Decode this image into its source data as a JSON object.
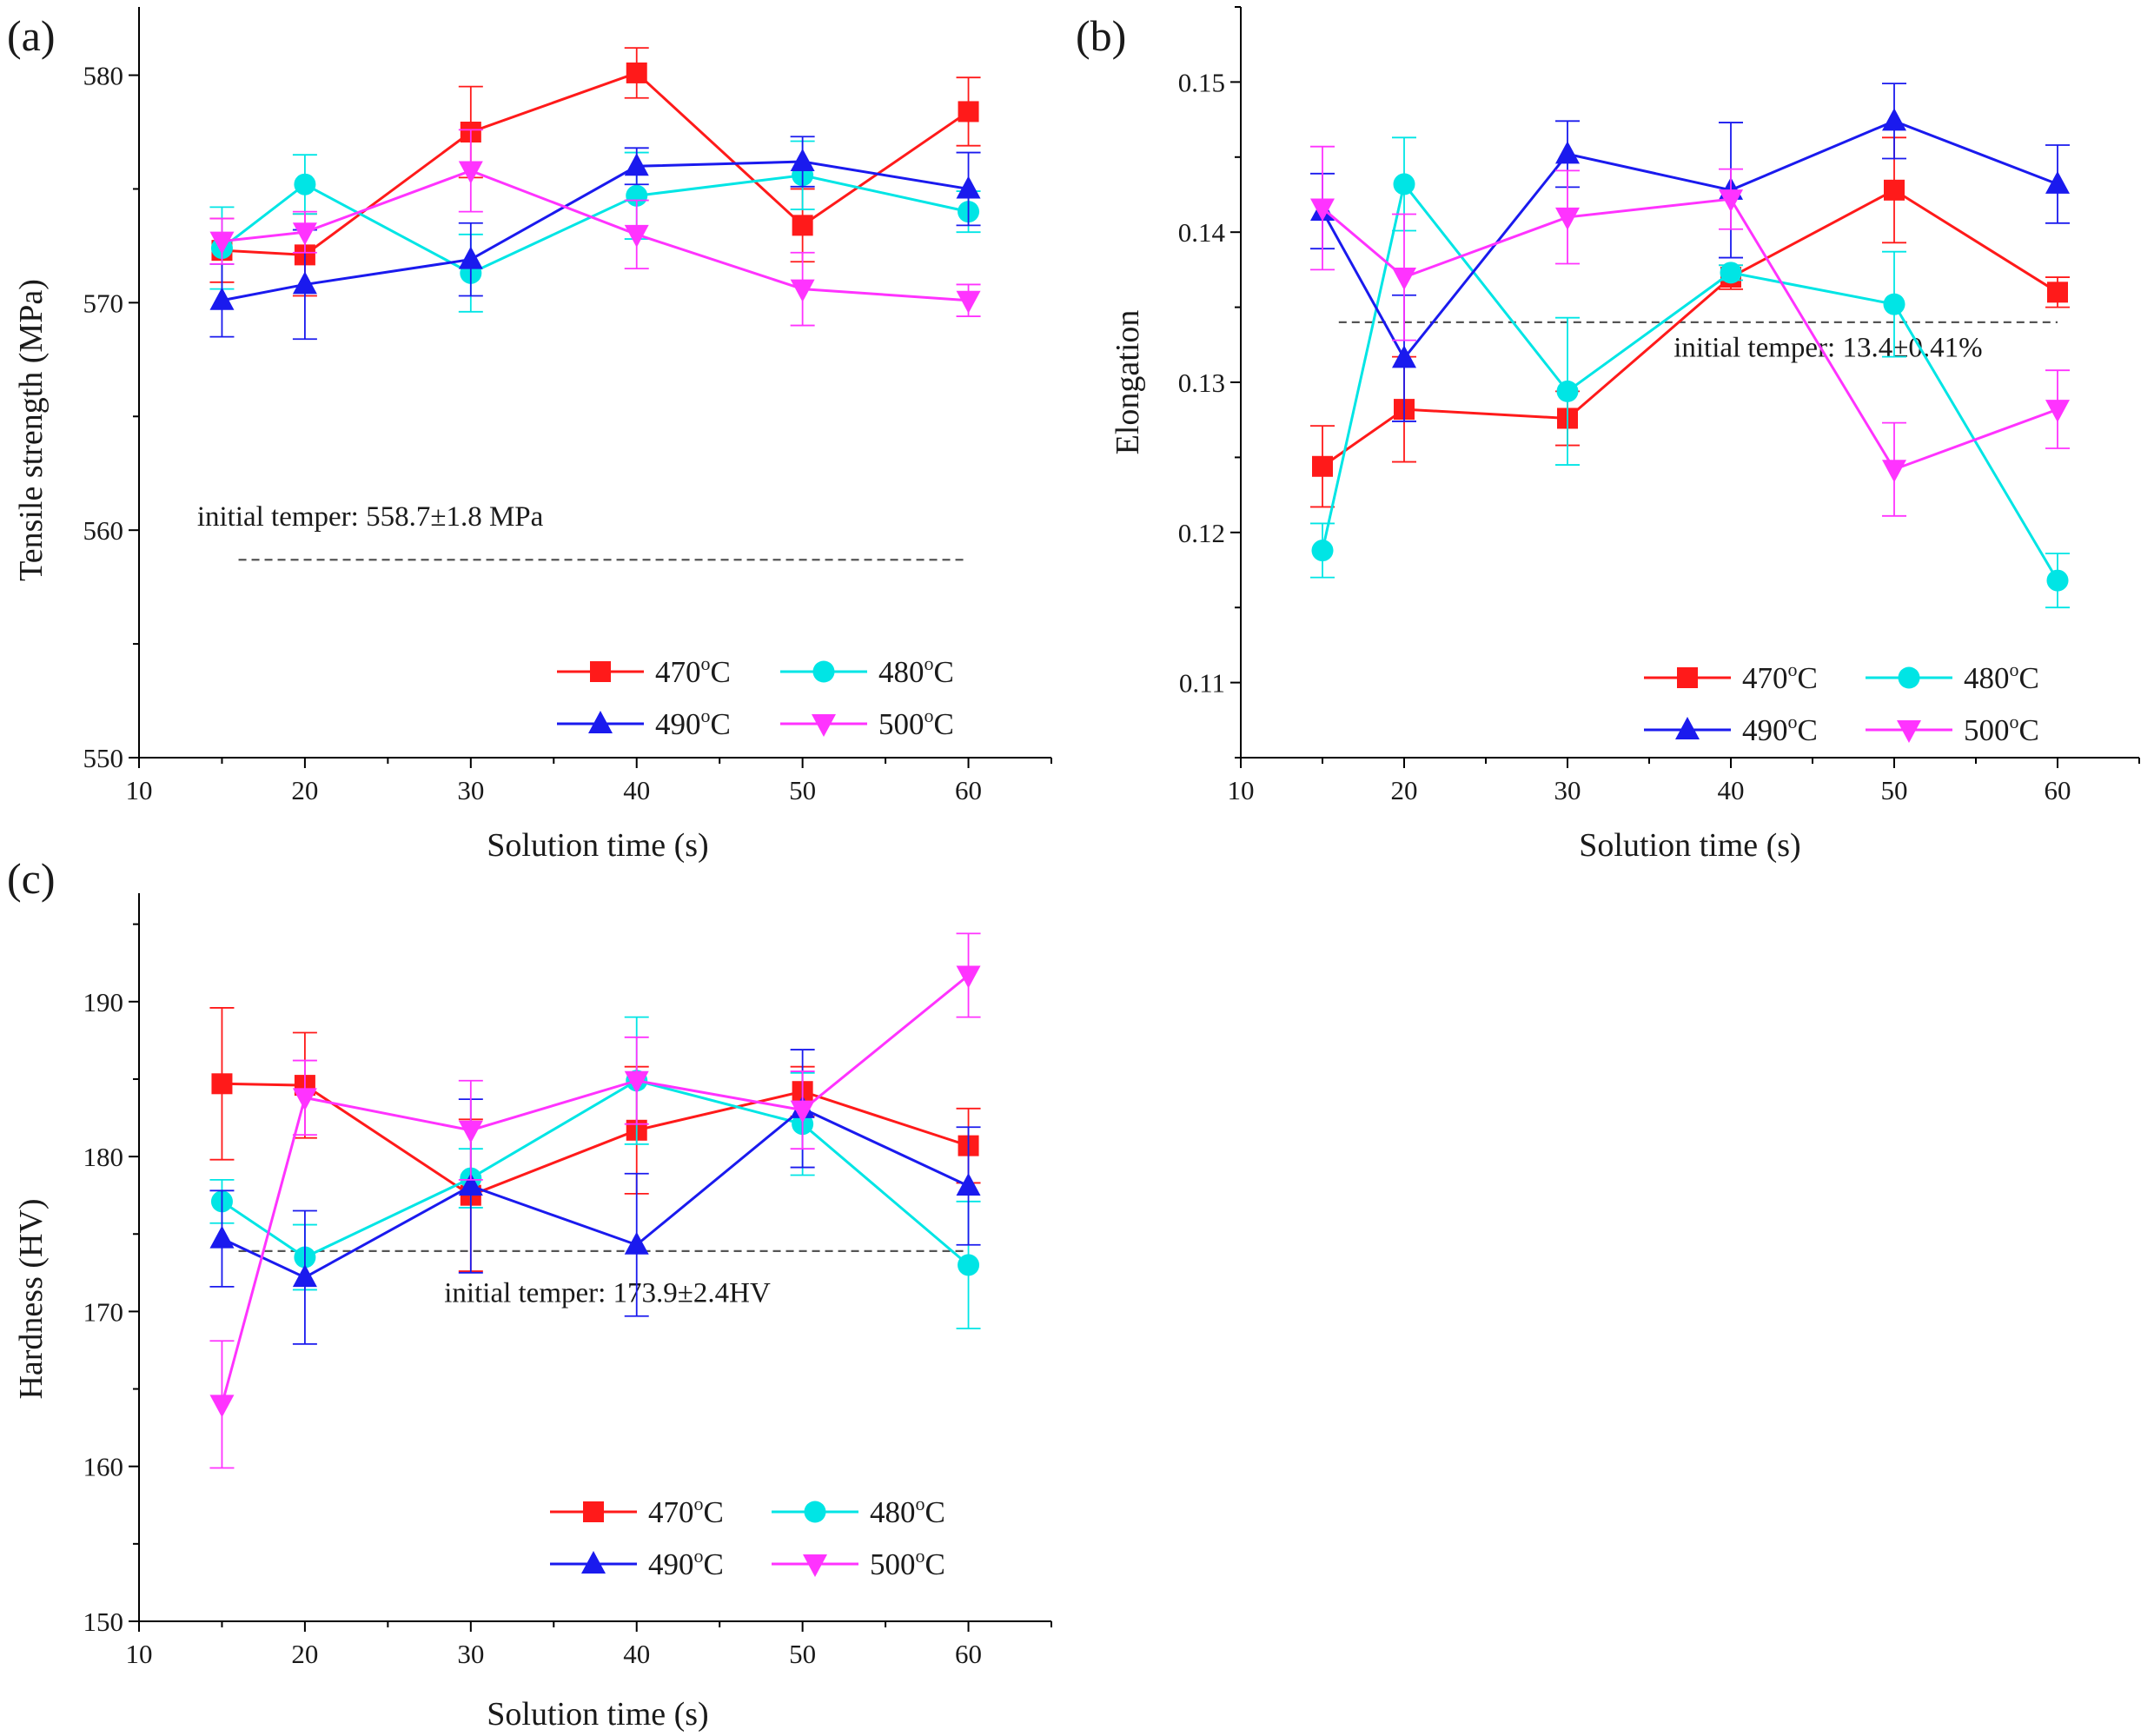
{
  "colors": {
    "s470": "#ff1a1a",
    "s480": "#00e5e5",
    "s490": "#1a1aee",
    "s500": "#ff33ff",
    "axis": "#000000",
    "reference": "#555555"
  },
  "chart_data": [
    {
      "id": "a",
      "panel_label": "(a)",
      "type": "line",
      "title": "",
      "xlabel": "Solution time (s)",
      "ylabel": "Tensile strength (MPa)",
      "xlim": [
        10,
        65
      ],
      "ylim": [
        550,
        583
      ],
      "xticks": [
        10,
        20,
        30,
        40,
        50,
        60
      ],
      "yticks": [
        550,
        560,
        570,
        580
      ],
      "ytick_labels": [
        "550",
        "560",
        "570",
        "580"
      ],
      "x": [
        15,
        20,
        30,
        40,
        50,
        60
      ],
      "series": [
        {
          "name": "470°C",
          "base": "470",
          "marker": "square",
          "color_key": "s470",
          "values": [
            572.3,
            572.1,
            577.5,
            580.1,
            573.4,
            578.4
          ],
          "errors": [
            1.4,
            1.8,
            2.0,
            1.1,
            1.6,
            1.5
          ]
        },
        {
          "name": "480°C",
          "base": "480",
          "marker": "circle",
          "color_key": "s480",
          "values": [
            572.4,
            575.2,
            571.3,
            574.7,
            575.6,
            574.0
          ],
          "errors": [
            1.8,
            1.3,
            1.7,
            1.9,
            1.5,
            0.9
          ]
        },
        {
          "name": "490°C",
          "base": "490",
          "marker": "triangle-up",
          "color_key": "s490",
          "values": [
            570.1,
            570.8,
            571.9,
            576.0,
            576.2,
            575.0
          ],
          "errors": [
            1.6,
            2.4,
            1.6,
            0.8,
            1.1,
            1.6
          ]
        },
        {
          "name": "500°C",
          "base": "500",
          "marker": "triangle-down",
          "color_key": "s500",
          "values": [
            572.7,
            573.1,
            575.8,
            573.0,
            570.6,
            570.1
          ],
          "errors": [
            1.0,
            0.9,
            1.8,
            1.5,
            1.6,
            0.7
          ]
        }
      ],
      "reference_line": {
        "y": 558.7,
        "x_start": 16,
        "x_end": 60
      },
      "annotation": "initial temper: 558.7±1.8 MPa",
      "annotation_anchor": {
        "x": 13.5,
        "y": 560.2
      },
      "legend_position": "lower-right"
    },
    {
      "id": "b",
      "panel_label": "(b)",
      "type": "line",
      "title": "",
      "xlabel": "Solution time (s)",
      "ylabel": "Elongation",
      "xlim": [
        10,
        65
      ],
      "ylim": [
        0.105,
        0.155
      ],
      "xticks": [
        10,
        20,
        30,
        40,
        50,
        60
      ],
      "yticks": [
        0.11,
        0.12,
        0.13,
        0.14,
        0.15
      ],
      "ytick_labels": [
        "0.11",
        "0.12",
        "0.13",
        "0.14",
        "0.15"
      ],
      "x": [
        15,
        20,
        30,
        40,
        50,
        60
      ],
      "series": [
        {
          "name": "470°C",
          "base": "470",
          "marker": "square",
          "color_key": "s470",
          "values": [
            0.1244,
            0.1282,
            0.1276,
            0.137,
            0.1428,
            0.136
          ],
          "errors": [
            0.0027,
            0.0035,
            0.0018,
            0.0008,
            0.0035,
            0.001
          ]
        },
        {
          "name": "480°C",
          "base": "480",
          "marker": "circle",
          "color_key": "s480",
          "values": [
            0.1188,
            0.1432,
            0.1294,
            0.1373,
            0.1352,
            0.1168
          ],
          "errors": [
            0.0018,
            0.0031,
            0.0049,
            0.0005,
            0.0035,
            0.0018
          ]
        },
        {
          "name": "490°C",
          "base": "490",
          "marker": "triangle-up",
          "color_key": "s490",
          "values": [
            0.1414,
            0.1316,
            0.1452,
            0.1428,
            0.1474,
            0.1432
          ],
          "errors": [
            0.0025,
            0.0042,
            0.0022,
            0.0045,
            0.0025,
            0.0026
          ]
        },
        {
          "name": "500°C",
          "base": "500",
          "marker": "triangle-down",
          "color_key": "s500",
          "values": [
            0.1416,
            0.137,
            0.141,
            0.1422,
            0.1242,
            0.1282
          ],
          "errors": [
            0.0041,
            0.0042,
            0.0031,
            0.002,
            0.0031,
            0.0026
          ]
        }
      ],
      "reference_line": {
        "y": 0.134,
        "x_start": 16,
        "x_end": 60
      },
      "annotation": "initial temper: 13.4±0.41%",
      "annotation_anchor": {
        "x": 36.5,
        "y": 0.1317
      },
      "legend_position": "lower-right"
    },
    {
      "id": "c",
      "panel_label": "(c)",
      "type": "line",
      "title": "",
      "xlabel": "Solution time (s)",
      "ylabel": "Hardness (HV)",
      "xlim": [
        10,
        65
      ],
      "ylim": [
        150,
        197
      ],
      "xticks": [
        10,
        20,
        30,
        40,
        50,
        60
      ],
      "yticks": [
        150,
        160,
        170,
        180,
        190
      ],
      "ytick_labels": [
        "150",
        "160",
        "170",
        "180",
        "190"
      ],
      "x": [
        15,
        20,
        30,
        40,
        50,
        60
      ],
      "series": [
        {
          "name": "470°C",
          "base": "470",
          "marker": "square",
          "color_key": "s470",
          "values": [
            184.7,
            184.6,
            177.5,
            181.7,
            184.2,
            180.7
          ],
          "errors": [
            4.9,
            3.4,
            4.9,
            4.1,
            1.6,
            2.4
          ]
        },
        {
          "name": "480°C",
          "base": "480",
          "marker": "circle",
          "color_key": "s480",
          "values": [
            177.1,
            173.5,
            178.6,
            184.9,
            182.1,
            173.0
          ],
          "errors": [
            1.4,
            2.1,
            1.9,
            4.1,
            3.3,
            4.1
          ]
        },
        {
          "name": "490°C",
          "base": "490",
          "marker": "triangle-up",
          "color_key": "s490",
          "values": [
            174.7,
            172.2,
            178.1,
            174.3,
            183.1,
            178.1
          ],
          "errors": [
            3.1,
            4.3,
            5.6,
            4.6,
            3.8,
            3.8
          ]
        },
        {
          "name": "500°C",
          "base": "500",
          "marker": "triangle-down",
          "color_key": "s500",
          "values": [
            164.0,
            183.8,
            181.7,
            184.9,
            183.0,
            191.7
          ],
          "errors": [
            4.1,
            2.4,
            3.2,
            2.8,
            2.5,
            2.7
          ]
        }
      ],
      "reference_line": {
        "y": 173.9,
        "x_start": 16,
        "x_end": 60
      },
      "annotation": "initial temper: 173.9±2.4HV",
      "annotation_anchor": {
        "x": 28.4,
        "y": 170.6
      },
      "legend_position": "lower-right"
    }
  ]
}
